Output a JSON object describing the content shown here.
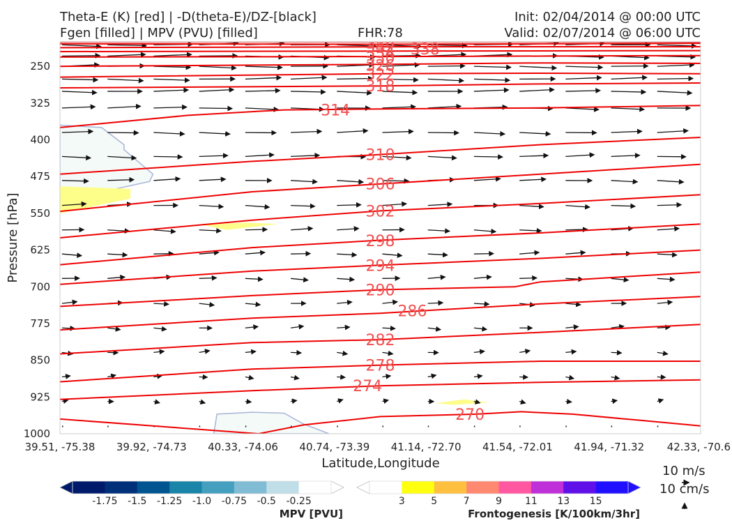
{
  "header": {
    "left_line1": "Theta-E (K) [red] | -D(theta-E)/DZ-[black]",
    "left_line2": "Fgen [filled] | MPV (PVU) [filled]",
    "center": "FHR:78",
    "right_line1": "Init: 02/04/2014 @ 00:00 UTC",
    "right_line2": "Valid: 02/07/2014 @ 06:00 UTC"
  },
  "chart_data": {
    "type": "cross-section",
    "xlabel": "Latitude,Longitude",
    "ylabel": "Pressure [hPa]",
    "x_ticks": [
      "39.51, -75.38",
      "39.92, -74.73",
      "40.33, -74.06",
      "40.74, -73.39",
      "41.14, -72.70",
      "41.54, -72.01",
      "41.94, -71.32",
      "42.33, -70.6"
    ],
    "y_ticks": [
      250,
      325,
      400,
      475,
      550,
      625,
      700,
      775,
      850,
      925,
      1000
    ],
    "ylim": [
      1000,
      200
    ],
    "theta_e_color": "#ee0000",
    "theta_e_label_color": "#f05050",
    "theta_e_contours": [
      {
        "value": 346,
        "points": [
          [
            0,
            200
          ],
          [
            0.5,
            200
          ],
          [
            1,
            200
          ]
        ]
      },
      {
        "value": 342,
        "points": [
          [
            0,
            204
          ],
          [
            0.5,
            205
          ],
          [
            1,
            203
          ]
        ]
      },
      {
        "value": 338,
        "points": [
          [
            0,
            212
          ],
          [
            0.55,
            210
          ],
          [
            1,
            210
          ]
        ]
      },
      {
        "value": 334,
        "points": [
          [
            0,
            220
          ],
          [
            0.5,
            219
          ],
          [
            1,
            218
          ]
        ]
      },
      {
        "value": 330,
        "points": [
          [
            0,
            231
          ],
          [
            0.5,
            230
          ],
          [
            1,
            228
          ]
        ]
      },
      {
        "value": 326,
        "points": [
          [
            0,
            250
          ],
          [
            0.5,
            246
          ],
          [
            0.75,
            243
          ],
          [
            1,
            244
          ]
        ]
      },
      {
        "value": 322,
        "points": [
          [
            0,
            272
          ],
          [
            0.5,
            265
          ],
          [
            0.75,
            264
          ],
          [
            1,
            265
          ]
        ]
      },
      {
        "value": 318,
        "points": [
          [
            0,
            294
          ],
          [
            0.5,
            290
          ],
          [
            0.75,
            286
          ],
          [
            1,
            284
          ]
        ]
      },
      {
        "value": 314,
        "points": [
          [
            0,
            375
          ],
          [
            0.2,
            350
          ],
          [
            0.35,
            339
          ],
          [
            0.5,
            337
          ],
          [
            0.75,
            335
          ],
          [
            1,
            330
          ]
        ]
      },
      {
        "value": 310,
        "points": [
          [
            0,
            470
          ],
          [
            0.3,
            444
          ],
          [
            0.5,
            430
          ],
          [
            0.75,
            410
          ],
          [
            1,
            395
          ]
        ]
      },
      {
        "value": 306,
        "points": [
          [
            0,
            546
          ],
          [
            0.3,
            506
          ],
          [
            0.5,
            490
          ],
          [
            0.75,
            470
          ],
          [
            1,
            450
          ]
        ]
      },
      {
        "value": 302,
        "points": [
          [
            0,
            600
          ],
          [
            0.3,
            564
          ],
          [
            0.5,
            545
          ],
          [
            0.75,
            530
          ],
          [
            1,
            512
          ]
        ]
      },
      {
        "value": 298,
        "points": [
          [
            0,
            655
          ],
          [
            0.3,
            620
          ],
          [
            0.5,
            605
          ],
          [
            0.75,
            590
          ],
          [
            1,
            572
          ]
        ]
      },
      {
        "value": 294,
        "points": [
          [
            0,
            695
          ],
          [
            0.3,
            668
          ],
          [
            0.5,
            656
          ],
          [
            0.75,
            642
          ],
          [
            1,
            625
          ]
        ]
      },
      {
        "value": 290,
        "points": [
          [
            0,
            740
          ],
          [
            0.3,
            718
          ],
          [
            0.5,
            706
          ],
          [
            0.71,
            700
          ],
          [
            0.75,
            690
          ],
          [
            1,
            670
          ]
        ]
      },
      {
        "value": 286,
        "points": [
          [
            0,
            788
          ],
          [
            0.3,
            764
          ],
          [
            0.5,
            754
          ],
          [
            0.75,
            735
          ],
          [
            1,
            720
          ]
        ]
      },
      {
        "value": 282,
        "points": [
          [
            0,
            837
          ],
          [
            0.3,
            814
          ],
          [
            0.5,
            808
          ],
          [
            0.75,
            793
          ],
          [
            1,
            777
          ]
        ]
      },
      {
        "value": 278,
        "points": [
          [
            0,
            894
          ],
          [
            0.3,
            868
          ],
          [
            0.5,
            860
          ],
          [
            0.75,
            852
          ],
          [
            1,
            852
          ]
        ]
      },
      {
        "value": 274,
        "points": [
          [
            0,
            930
          ],
          [
            0.3,
            912
          ],
          [
            0.5,
            902
          ],
          [
            0.75,
            895
          ],
          [
            1,
            890
          ]
        ]
      },
      {
        "value": 270,
        "points": [
          [
            0,
            970
          ],
          [
            0.31,
            1000
          ],
          [
            0.38,
            982
          ],
          [
            0.5,
            965
          ],
          [
            0.65,
            960
          ],
          [
            0.72,
            955
          ],
          [
            0.8,
            960
          ],
          [
            0.9,
            972
          ],
          [
            1,
            984
          ]
        ]
      }
    ],
    "theta_e_label_positions": [
      {
        "value": 346,
        "x": 0.5,
        "p": 202
      },
      {
        "value": 342,
        "x": 0.5,
        "p": 210
      },
      {
        "value": 338,
        "x": 0.57,
        "p": 214
      },
      {
        "value": 334,
        "x": 0.5,
        "p": 221
      },
      {
        "value": 330,
        "x": 0.5,
        "p": 232
      },
      {
        "value": 326,
        "x": 0.5,
        "p": 248
      },
      {
        "value": 322,
        "x": 0.5,
        "p": 266
      },
      {
        "value": 318,
        "x": 0.5,
        "p": 290
      },
      {
        "value": 314,
        "x": 0.43,
        "p": 339
      },
      {
        "value": 310,
        "x": 0.5,
        "p": 430
      },
      {
        "value": 306,
        "x": 0.5,
        "p": 490
      },
      {
        "value": 302,
        "x": 0.5,
        "p": 545
      },
      {
        "value": 298,
        "x": 0.5,
        "p": 606
      },
      {
        "value": 294,
        "x": 0.5,
        "p": 656
      },
      {
        "value": 290,
        "x": 0.5,
        "p": 706
      },
      {
        "value": 286,
        "x": 0.55,
        "p": 749
      },
      {
        "value": 282,
        "x": 0.5,
        "p": 808
      },
      {
        "value": 278,
        "x": 0.5,
        "p": 860
      },
      {
        "value": 274,
        "x": 0.48,
        "p": 902
      },
      {
        "value": 270,
        "x": 0.64,
        "p": 960
      }
    ],
    "mpv_outline_color": "#a8b4d8",
    "mpv_regions": [
      {
        "level": "-0.25",
        "color": "#f4faf8",
        "points": [
          [
            0,
            370
          ],
          [
            0.065,
            375
          ],
          [
            0.1,
            410
          ],
          [
            0.1,
            420
          ],
          [
            0.145,
            470
          ],
          [
            0.14,
            485
          ],
          [
            0,
            525
          ]
        ]
      },
      {
        "level": "-0.25",
        "color": "#f4faf8",
        "points": [
          [
            0.24,
            1000
          ],
          [
            0.245,
            960
          ],
          [
            0.3,
            956
          ],
          [
            0.35,
            958
          ],
          [
            0.38,
            980
          ],
          [
            0.42,
            1000
          ]
        ]
      }
    ],
    "fgen_regions": [
      {
        "level": "3",
        "color": "#fdfd8a",
        "points": [
          [
            0,
            495
          ],
          [
            0.11,
            500
          ],
          [
            0.11,
            520
          ],
          [
            0,
            550
          ]
        ]
      },
      {
        "level": "3",
        "color": "#fdfd8a",
        "points": [
          [
            0.22,
            573
          ],
          [
            0.29,
            569
          ],
          [
            0.34,
            572
          ],
          [
            0.26,
            584
          ]
        ]
      },
      {
        "level": "3",
        "color": "#fdfd8a",
        "points": [
          [
            0.585,
            938
          ],
          [
            0.63,
            930
          ],
          [
            0.67,
            936
          ],
          [
            0.615,
            941
          ]
        ]
      }
    ],
    "wind_arrow_rows": [
      206,
      229,
      250,
      276,
      301,
      335,
      385,
      434,
      483,
      534,
      584,
      633,
      683,
      734,
      784,
      834,
      884,
      934,
      985
    ],
    "wind_arrow_cols": [
      0,
      0.071,
      0.143,
      0.214,
      0.286,
      0.357,
      0.429,
      0.5,
      0.571,
      0.643,
      0.714,
      0.786,
      0.857,
      0.929
    ],
    "wind_arrow_pattern": "eastward arrows, longest aloft (about 0.07 of the section width), shrinking to dots near 1000 hPa",
    "mpv_colorbar": {
      "title": "MPV [PVU]",
      "colors": [
        "#001a6b",
        "#00307a",
        "#005590",
        "#1a85a8",
        "#45a0c0",
        "#80bcd4",
        "#c0dee8",
        "#ffffff"
      ],
      "ticks": [
        "-1.75",
        "-1.5",
        "-1.25",
        "-1.0",
        "-0.75",
        "-0.5",
        "-0.25"
      ]
    },
    "fgen_colorbar": {
      "title": "Frontogenesis [K/100km/3hr]",
      "colors": [
        "#ffffff",
        "#ffff10",
        "#ffc040",
        "#ff8870",
        "#ff58a0",
        "#c030d8",
        "#6010e8",
        "#2010ff"
      ],
      "ticks": [
        "3",
        "5",
        "7",
        "9",
        "11",
        "13",
        "15"
      ]
    },
    "reference_vectors": {
      "horizontal": "10 m/s",
      "vertical": "10 cm/s"
    }
  }
}
